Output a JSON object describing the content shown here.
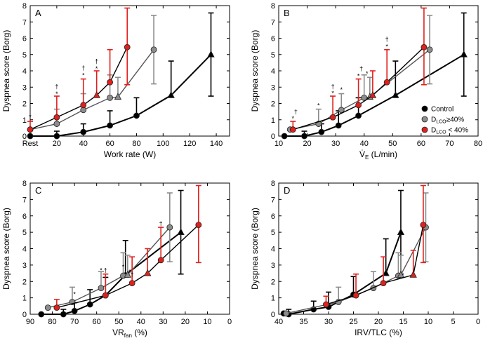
{
  "colors": {
    "control": "#000000",
    "dlco_ge40": "#8c8c8c",
    "dlco_lt40": "#e0201b"
  },
  "legend": {
    "control": "Control",
    "dlco_ge40_prefix": "D",
    "dlco_ge40_sub": "LCO",
    "dlco_ge40_suffix": "≥40%",
    "dlco_lt40_prefix": "D",
    "dlco_lt40_sub": "LCO",
    "dlco_lt40_suffix": " < 40%"
  },
  "chart_data": [
    {
      "type": "line",
      "panel": "A",
      "ylabel": "Dyspnea score (Borg)",
      "xlabel": "Work rate (W)",
      "xlim": [
        0,
        150
      ],
      "ylim": [
        0,
        8
      ],
      "xticks": [
        {
          "v": 0,
          "label": "Rest"
        },
        {
          "v": 20,
          "label": "20"
        },
        {
          "v": 40,
          "label": "40"
        },
        {
          "v": 60,
          "label": "60"
        },
        {
          "v": 80,
          "label": "80"
        },
        {
          "v": 100,
          "label": "100"
        },
        {
          "v": 120,
          "label": "120"
        },
        {
          "v": 140,
          "label": "140"
        }
      ],
      "yticks": [
        0,
        1,
        2,
        3,
        4,
        5,
        6,
        7,
        8
      ],
      "series": [
        {
          "key": "control",
          "points": [
            [
              0,
              0.0,
              0,
              0
            ],
            [
              20,
              0.0,
              0,
              0.3
            ],
            [
              40,
              0.25,
              0,
              0.5
            ],
            [
              60,
              0.65,
              0,
              0.9
            ],
            [
              80,
              1.25,
              0,
              1.1
            ],
            [
              106,
              2.5,
              0,
              2.1
            ],
            [
              136,
              5.0,
              2.55,
              2.55
            ]
          ],
          "markers": [
            "o",
            "o",
            "o",
            "o",
            "o",
            "^",
            "^"
          ]
        },
        {
          "key": "dlco_ge40",
          "points": [
            [
              0,
              0.4,
              0,
              0
            ],
            [
              20,
              0.75,
              0,
              0.9
            ],
            [
              40,
              1.6,
              0,
              1.0
            ],
            [
              60,
              2.35,
              0,
              1.4
            ],
            [
              66,
              2.4,
              0,
              1.2
            ],
            [
              93,
              5.3,
              2.1,
              2.1
            ]
          ],
          "markers": [
            "o",
            "o",
            "o",
            "o",
            "^",
            "o"
          ]
        },
        {
          "key": "dlco_lt40",
          "points": [
            [
              0,
              0.4,
              0,
              0.5
            ],
            [
              20,
              1.15,
              0,
              1.3
            ],
            [
              40,
              1.9,
              0,
              1.6
            ],
            [
              50,
              2.5,
              0,
              1.5
            ],
            [
              60,
              3.3,
              0,
              2.0
            ],
            [
              73,
              5.45,
              2.3,
              2.4
            ]
          ],
          "markers": [
            "o",
            "o",
            "o",
            "^",
            "o",
            "o"
          ]
        }
      ],
      "annotations": [
        {
          "x": 0,
          "y": 1.05,
          "t": "*"
        },
        {
          "x": 20,
          "y": 2.45,
          "t": "*"
        },
        {
          "x": 20,
          "y": 2.9,
          "t": "†"
        },
        {
          "x": 40,
          "y": 3.6,
          "t": "*"
        },
        {
          "x": 40,
          "y": 4.05,
          "t": "†"
        },
        {
          "x": 50,
          "y": 4.0,
          "t": "*"
        },
        {
          "x": 50,
          "y": 4.45,
          "t": "†"
        }
      ]
    },
    {
      "type": "line",
      "panel": "B",
      "ylabel": "Dyspnea score (Borg)",
      "xlabel_main": "V̇",
      "xlabel_sub": "E",
      "xlabel_rest": " (L/min)",
      "xlim": [
        10,
        80
      ],
      "ylim": [
        0,
        8
      ],
      "xticks": [
        {
          "v": 10,
          "label": "10"
        },
        {
          "v": 20,
          "label": "20"
        },
        {
          "v": 30,
          "label": "30"
        },
        {
          "v": 40,
          "label": "40"
        },
        {
          "v": 50,
          "label": "50"
        },
        {
          "v": 60,
          "label": "60"
        },
        {
          "v": 70,
          "label": "70"
        },
        {
          "v": 80,
          "label": "80"
        }
      ],
      "yticks": [
        0,
        1,
        2,
        3,
        4,
        5,
        6,
        7,
        8
      ],
      "series": [
        {
          "key": "control",
          "points": [
            [
              12,
              0.0,
              0,
              0
            ],
            [
              19,
              0.0,
              0,
              0.3
            ],
            [
              25,
              0.25,
              0,
              0.5
            ],
            [
              31,
              0.65,
              0,
              0.9
            ],
            [
              38,
              1.25,
              0,
              1.1
            ],
            [
              51,
              2.5,
              0,
              2.1
            ],
            [
              75,
              5.0,
              2.55,
              2.55
            ]
          ],
          "markers": [
            "o",
            "o",
            "o",
            "o",
            "o",
            "^",
            "^"
          ]
        },
        {
          "key": "dlco_ge40",
          "points": [
            [
              14,
              0.4,
              0,
              0
            ],
            [
              24,
              0.75,
              0,
              0.9
            ],
            [
              32,
              1.6,
              0,
              1.0
            ],
            [
              40,
              2.35,
              0,
              1.4
            ],
            [
              42,
              2.4,
              0,
              1.2
            ],
            [
              63,
              5.3,
              2.1,
              2.1
            ]
          ],
          "markers": [
            "o",
            "o",
            "o",
            "o",
            "^",
            "o"
          ]
        },
        {
          "key": "dlco_lt40",
          "points": [
            [
              15,
              0.4,
              0,
              0.5
            ],
            [
              29,
              1.15,
              0,
              1.3
            ],
            [
              38,
              1.9,
              0,
              1.6
            ],
            [
              43,
              2.5,
              0,
              1.5
            ],
            [
              48,
              3.3,
              0,
              2.0
            ],
            [
              61,
              5.45,
              2.3,
              2.4
            ]
          ],
          "markers": [
            "o",
            "o",
            "o",
            "^",
            "o",
            "o"
          ]
        }
      ],
      "annotations": [
        {
          "x": 15,
          "y": 0.95,
          "t": "*"
        },
        {
          "x": 16,
          "y": 1.35,
          "t": "†"
        },
        {
          "x": 24,
          "y": 1.75,
          "t": "*"
        },
        {
          "x": 29,
          "y": 2.5,
          "t": "*"
        },
        {
          "x": 29,
          "y": 2.9,
          "t": "†"
        },
        {
          "x": 32,
          "y": 2.7,
          "t": "*"
        },
        {
          "x": 38,
          "y": 3.55,
          "t": "*"
        },
        {
          "x": 39,
          "y": 4.0,
          "t": "†"
        },
        {
          "x": 41,
          "y": 3.7,
          "t": "*"
        },
        {
          "x": 48,
          "y": 5.35,
          "t": "*"
        },
        {
          "x": 48,
          "y": 5.8,
          "t": "†"
        }
      ]
    },
    {
      "type": "line",
      "panel": "C",
      "ylabel": "Dyspnea score (Borg)",
      "xlabel_main": "VR",
      "xlabel_sub": "fan",
      "xlabel_rest": " (%)",
      "xlim": [
        90,
        0
      ],
      "ylim": [
        0,
        8
      ],
      "xticks": [
        {
          "v": 90,
          "label": "90"
        },
        {
          "v": 80,
          "label": "80"
        },
        {
          "v": 70,
          "label": "70"
        },
        {
          "v": 60,
          "label": "60"
        },
        {
          "v": 50,
          "label": "50"
        },
        {
          "v": 40,
          "label": "40"
        },
        {
          "v": 30,
          "label": "30"
        },
        {
          "v": 20,
          "label": "20"
        },
        {
          "v": 10,
          "label": "10"
        },
        {
          "v": 0,
          "label": "0"
        }
      ],
      "yticks": [
        0,
        1,
        2,
        3,
        4,
        5,
        6,
        7,
        8
      ],
      "series": [
        {
          "key": "control",
          "points": [
            [
              85,
              0.0,
              0,
              0
            ],
            [
              75,
              0.0,
              0,
              0.3
            ],
            [
              70,
              0.2,
              0,
              0.5
            ],
            [
              63,
              0.6,
              0,
              0.9
            ],
            [
              56,
              1.15,
              0,
              1.1
            ],
            [
              47,
              2.4,
              0,
              2.1
            ],
            [
              22,
              5.0,
              2.55,
              2.55
            ]
          ],
          "markers": [
            "o",
            "o",
            "o",
            "o",
            "o",
            "^",
            "^"
          ]
        },
        {
          "key": "dlco_ge40",
          "points": [
            [
              82,
              0.4,
              0,
              0
            ],
            [
              71,
              0.75,
              0,
              0.9
            ],
            [
              58,
              1.6,
              0,
              1.0
            ],
            [
              48,
              2.35,
              0,
              1.4
            ],
            [
              46,
              2.4,
              0,
              1.2
            ],
            [
              27,
              5.3,
              2.1,
              2.1
            ]
          ],
          "markers": [
            "o",
            "o",
            "o",
            "o",
            "^",
            "o"
          ]
        },
        {
          "key": "dlco_lt40",
          "points": [
            [
              78,
              0.4,
              0,
              0.5
            ],
            [
              56,
              1.15,
              0,
              1.3
            ],
            [
              44,
              1.9,
              0,
              1.6
            ],
            [
              37,
              2.5,
              0,
              1.5
            ],
            [
              31,
              3.3,
              0,
              2.0
            ],
            [
              14,
              5.45,
              2.3,
              2.4
            ]
          ],
          "markers": [
            "o",
            "o",
            "o",
            "^",
            "o",
            "o"
          ]
        }
      ],
      "annotations": [
        {
          "x": 70,
          "y": 1.1,
          "t": "*"
        },
        {
          "x": 58,
          "y": 2.55,
          "t": "*"
        },
        {
          "x": 56,
          "y": 2.55,
          "t": "†"
        },
        {
          "x": 48,
          "y": 2.75,
          "t": "*"
        },
        {
          "x": 45,
          "y": 2.45,
          "t": "*"
        },
        {
          "x": 44,
          "y": 2.3,
          "t": "†"
        },
        {
          "x": 31,
          "y": 5.4,
          "t": "†"
        }
      ]
    },
    {
      "type": "line",
      "panel": "D",
      "ylabel": "Dyspnea score (Borg)",
      "xlabel": "IRV/TLC (%)",
      "xlim": [
        40,
        0
      ],
      "ylim": [
        0,
        8
      ],
      "xticks": [
        {
          "v": 40,
          "label": "40"
        },
        {
          "v": 35,
          "label": "35"
        },
        {
          "v": 30,
          "label": "30"
        },
        {
          "v": 25,
          "label": "25"
        },
        {
          "v": 20,
          "label": "20"
        },
        {
          "v": 15,
          "label": "15"
        },
        {
          "v": 10,
          "label": "10"
        },
        {
          "v": 5,
          "label": "5"
        },
        {
          "v": 0,
          "label": "0"
        }
      ],
      "yticks": [
        0,
        1,
        2,
        3,
        4,
        5,
        6,
        7,
        8
      ],
      "series": [
        {
          "key": "control",
          "points": [
            [
              39,
              0.05,
              0,
              0
            ],
            [
              38,
              0.0,
              0,
              0.3
            ],
            [
              33,
              0.3,
              0,
              0.5
            ],
            [
              30,
              0.45,
              0,
              0.9
            ],
            [
              25,
              1.2,
              0,
              1.1
            ],
            [
              18.5,
              2.5,
              0,
              2.1
            ],
            [
              15.5,
              5.0,
              2.55,
              2.55
            ]
          ],
          "markers": [
            "o",
            "o",
            "o",
            "o",
            "o",
            "^",
            "^"
          ]
        },
        {
          "key": "dlco_ge40",
          "points": [
            [
              38.5,
              0.05,
              0,
              0
            ],
            [
              28,
              0.75,
              0,
              0.9
            ],
            [
              21,
              1.6,
              0,
              1.0
            ],
            [
              16,
              2.35,
              0,
              1.4
            ],
            [
              15.5,
              2.4,
              0,
              1.2
            ],
            [
              10.5,
              5.3,
              2.1,
              2.1
            ]
          ],
          "markers": [
            "o",
            "o",
            "o",
            "o",
            "^",
            "o"
          ]
        },
        {
          "key": "dlco_lt40",
          "points": [
            [
              30.5,
              0.6,
              0,
              0.5
            ],
            [
              24.5,
              1.15,
              0,
              1.3
            ],
            [
              19,
              1.9,
              0,
              1.6
            ],
            [
              13,
              2.4,
              0,
              1.5
            ],
            [
              11,
              5.45,
              2.3,
              2.4
            ]
          ],
          "markers": [
            "o",
            "o",
            "o",
            "^",
            "o"
          ]
        }
      ],
      "annotations": []
    }
  ]
}
